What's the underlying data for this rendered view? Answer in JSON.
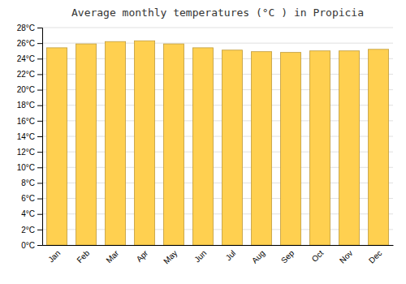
{
  "chart_data": {
    "type": "bar",
    "title": "Average monthly temperatures (°C ) in Propicia",
    "categories": [
      "Jan",
      "Feb",
      "Mar",
      "Apr",
      "May",
      "Jun",
      "Jul",
      "Aug",
      "Sep",
      "Oct",
      "Nov",
      "Dec"
    ],
    "values": [
      25.4,
      25.9,
      26.2,
      26.3,
      25.9,
      25.4,
      25.1,
      24.9,
      24.8,
      25.0,
      25.0,
      25.2
    ],
    "color": "#FFD050",
    "ylim": [
      0,
      28
    ],
    "yticks": [
      {
        "value": 0,
        "label": "0°C"
      },
      {
        "value": 2,
        "label": "2°C"
      },
      {
        "value": 4,
        "label": "4°C"
      },
      {
        "value": 6,
        "label": "6°C"
      },
      {
        "value": 8,
        "label": "8°C"
      },
      {
        "value": 10,
        "label": "10°C"
      },
      {
        "value": 12,
        "label": "12°C"
      },
      {
        "value": 14,
        "label": "14°C"
      },
      {
        "value": 16,
        "label": "16°C"
      },
      {
        "value": 18,
        "label": "18°C"
      },
      {
        "value": 20,
        "label": "20°C"
      },
      {
        "value": 22,
        "label": "22°C"
      },
      {
        "value": 24,
        "label": "24°C"
      },
      {
        "value": 26,
        "label": "26°C"
      },
      {
        "value": 28,
        "label": "28°C"
      }
    ],
    "grid": true
  }
}
